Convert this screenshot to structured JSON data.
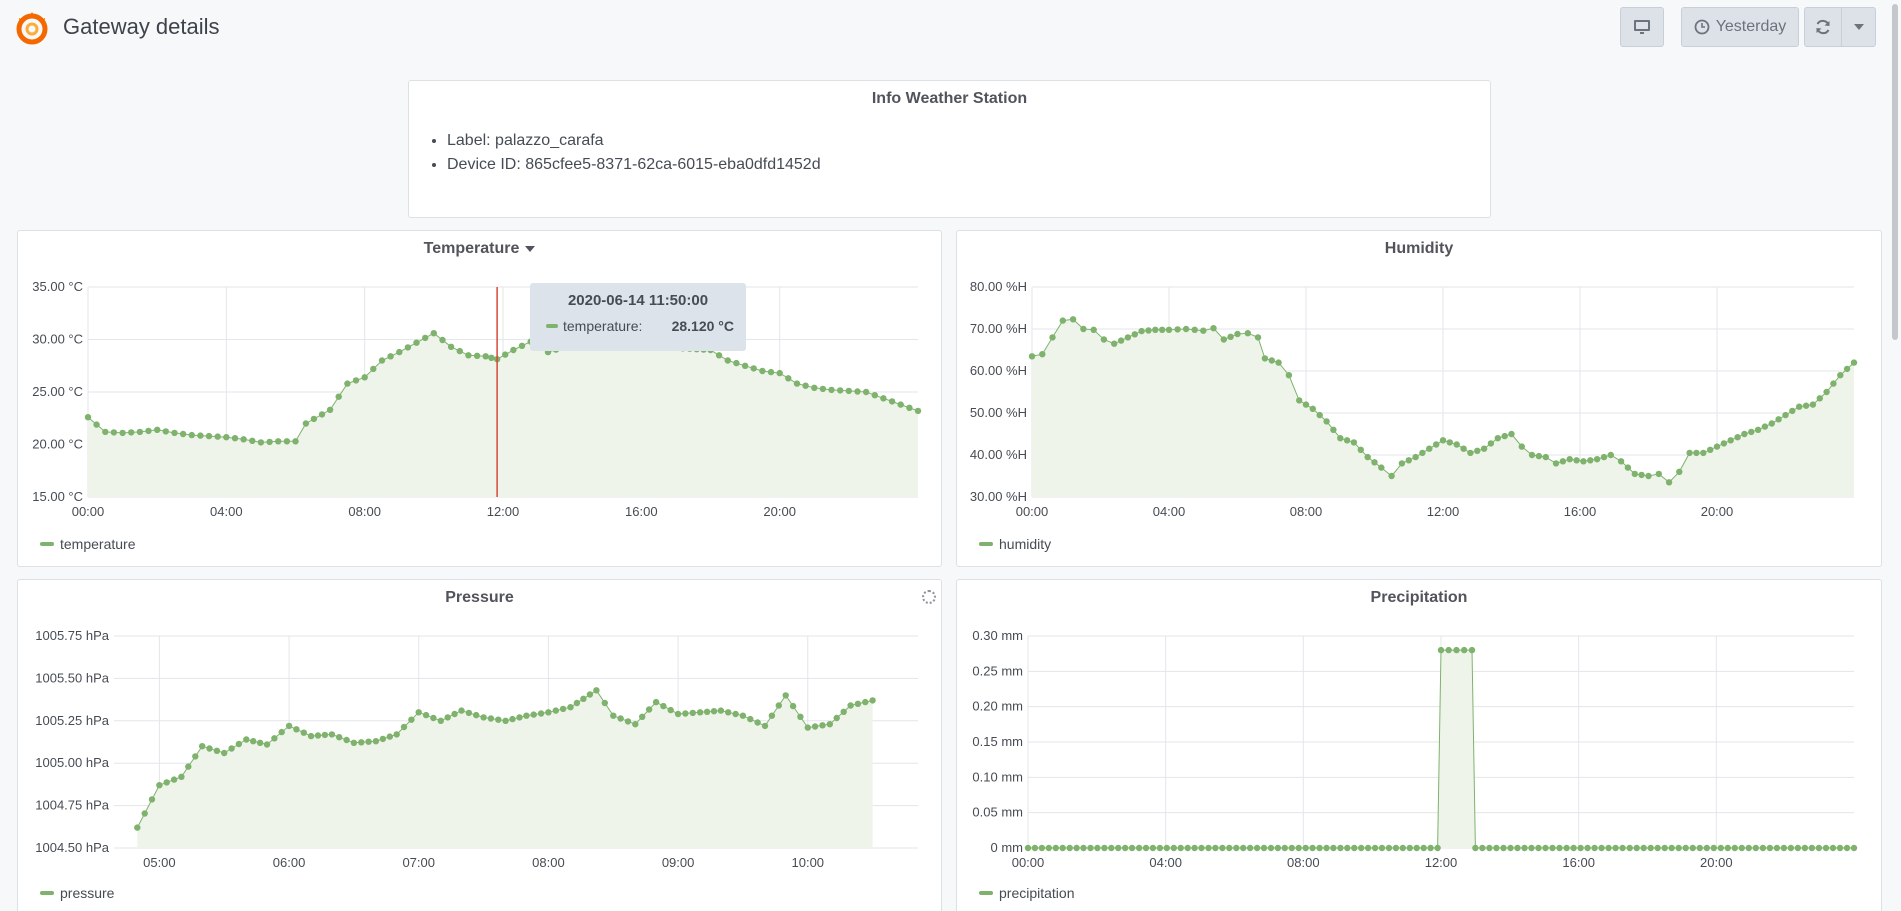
{
  "header": {
    "title": "Gateway details",
    "time_range_label": "Yesterday",
    "icons": [
      "grafana-logo-icon",
      "tv-mode-icon",
      "clock-icon",
      "refresh-icon",
      "caret-down-icon"
    ]
  },
  "info_panel": {
    "title": "Info Weather Station",
    "items": [
      "Label: palazzo_carafa",
      "Device ID: 865cfee5-8371-62ca-6015-eba0dfd1452d"
    ]
  },
  "tooltip": {
    "time": "2020-06-14 11:50:00",
    "series": "temperature:",
    "value": "28.120 °C"
  },
  "colors": {
    "series": "#7eb26d",
    "fill": "#eef4ea",
    "crosshair": "#d44a3a",
    "grid": "#e3e6ea"
  },
  "chart_data": [
    {
      "type": "line",
      "title": "Temperature",
      "unit": "°C",
      "ylim": [
        15,
        35
      ],
      "yticks": [
        "35.00 °C",
        "30.00 °C",
        "25.00 °C",
        "20.00 °C",
        "15.00 °C"
      ],
      "xticks": [
        "00:00",
        "04:00",
        "08:00",
        "12:00",
        "16:00",
        "20:00"
      ],
      "xlim_hours": [
        0,
        24
      ],
      "legend": "temperature",
      "series": [
        {
          "name": "temperature",
          "points": [
            [
              0,
              22.6
            ],
            [
              0.5,
              21.2
            ],
            [
              1,
              21.1
            ],
            [
              1.5,
              21.2
            ],
            [
              2,
              21.4
            ],
            [
              2.5,
              21.1
            ],
            [
              3,
              20.9
            ],
            [
              3.5,
              20.8
            ],
            [
              4,
              20.7
            ],
            [
              4.5,
              20.5
            ],
            [
              5,
              20.2
            ],
            [
              5.5,
              20.3
            ],
            [
              6,
              20.3
            ],
            [
              6.3,
              22
            ],
            [
              7,
              23.3
            ],
            [
              7.5,
              25.8
            ],
            [
              8,
              26.4
            ],
            [
              8.5,
              28
            ],
            [
              9,
              28.8
            ],
            [
              9.5,
              29.7
            ],
            [
              10,
              30.6
            ],
            [
              10.5,
              29.3
            ],
            [
              11,
              28.5
            ],
            [
              11.5,
              28.4
            ],
            [
              11.83,
              28.12
            ],
            [
              12.3,
              29
            ],
            [
              12.8,
              29.8
            ],
            [
              13.3,
              28.8
            ],
            [
              14,
              29.5
            ],
            [
              15,
              29.8
            ],
            [
              16,
              29.6
            ],
            [
              17,
              29.2
            ],
            [
              18,
              29
            ],
            [
              18.5,
              28
            ],
            [
              19,
              27.5
            ],
            [
              19.5,
              27
            ],
            [
              20,
              26.8
            ],
            [
              20.5,
              25.8
            ],
            [
              21,
              25.4
            ],
            [
              21.5,
              25.2
            ],
            [
              22,
              25.1
            ],
            [
              22.5,
              25
            ],
            [
              23,
              24.4
            ],
            [
              23.5,
              23.8
            ],
            [
              24,
              23.2
            ]
          ]
        }
      ]
    },
    {
      "type": "line",
      "title": "Humidity",
      "unit": "%H",
      "ylim": [
        30,
        80
      ],
      "yticks": [
        "80.00 %H",
        "70.00 %H",
        "60.00 %H",
        "50.00 %H",
        "40.00 %H",
        "30.00 %H"
      ],
      "xticks": [
        "00:00",
        "04:00",
        "08:00",
        "12:00",
        "16:00",
        "20:00"
      ],
      "xlim_hours": [
        0,
        24
      ],
      "legend": "humidity",
      "series": [
        {
          "name": "humidity",
          "points": [
            [
              0,
              63.5
            ],
            [
              0.3,
              64
            ],
            [
              0.6,
              68
            ],
            [
              0.9,
              72
            ],
            [
              1.2,
              72.3
            ],
            [
              1.5,
              70
            ],
            [
              1.8,
              69.8
            ],
            [
              2.1,
              67.5
            ],
            [
              2.4,
              66.5
            ],
            [
              2.8,
              68
            ],
            [
              3.2,
              69.5
            ],
            [
              3.6,
              69.8
            ],
            [
              4,
              69.8
            ],
            [
              4.5,
              70
            ],
            [
              5,
              69.6
            ],
            [
              5.3,
              70.2
            ],
            [
              5.6,
              67.5
            ],
            [
              6,
              68.8
            ],
            [
              6.3,
              69
            ],
            [
              6.6,
              68
            ],
            [
              6.8,
              63
            ],
            [
              7.2,
              62
            ],
            [
              7.5,
              59
            ],
            [
              7.8,
              53
            ],
            [
              8.2,
              51
            ],
            [
              8.6,
              48
            ],
            [
              9,
              44
            ],
            [
              9.4,
              43
            ],
            [
              9.8,
              39.5
            ],
            [
              10.2,
              37
            ],
            [
              10.5,
              35
            ],
            [
              10.8,
              38
            ],
            [
              11.2,
              39.5
            ],
            [
              11.6,
              41.5
            ],
            [
              12,
              43.5
            ],
            [
              12.4,
              42.5
            ],
            [
              12.8,
              40.5
            ],
            [
              13.2,
              41.5
            ],
            [
              13.6,
              44
            ],
            [
              14,
              45
            ],
            [
              14.3,
              42
            ],
            [
              14.6,
              40
            ],
            [
              15,
              39.5
            ],
            [
              15.3,
              38
            ],
            [
              15.7,
              39
            ],
            [
              16.1,
              38.5
            ],
            [
              16.5,
              39
            ],
            [
              16.9,
              40
            ],
            [
              17.2,
              38.5
            ],
            [
              17.6,
              35.5
            ],
            [
              18,
              35
            ],
            [
              18.3,
              35.5
            ],
            [
              18.6,
              33.5
            ],
            [
              18.9,
              36
            ],
            [
              19.2,
              40.5
            ],
            [
              19.6,
              40.5
            ],
            [
              20,
              42
            ],
            [
              20.4,
              43.5
            ],
            [
              20.8,
              45
            ],
            [
              21.2,
              46
            ],
            [
              21.6,
              47.5
            ],
            [
              22,
              49.5
            ],
            [
              22.4,
              51.5
            ],
            [
              22.8,
              52
            ],
            [
              23.2,
              55
            ],
            [
              23.6,
              59
            ],
            [
              24,
              62
            ]
          ]
        }
      ]
    },
    {
      "type": "line",
      "title": "Pressure",
      "unit": "hPa",
      "ylim": [
        1004.5,
        1005.75
      ],
      "yticks": [
        "1005.75 hPa",
        "1005.50 hPa",
        "1005.25 hPa",
        "1005.00 hPa",
        "1004.75 hPa",
        "1004.50 hPa"
      ],
      "xticks": [
        "05:00",
        "06:00",
        "07:00",
        "08:00",
        "09:00",
        "10:00"
      ],
      "xlim_hours": [
        4.65,
        10.85
      ],
      "legend": "pressure",
      "series": [
        {
          "name": "pressure",
          "points": [
            [
              4.83,
              1004.62
            ],
            [
              5,
              1004.87
            ],
            [
              5.17,
              1004.92
            ],
            [
              5.33,
              1005.1
            ],
            [
              5.5,
              1005.06
            ],
            [
              5.67,
              1005.14
            ],
            [
              5.83,
              1005.11
            ],
            [
              6,
              1005.22
            ],
            [
              6.17,
              1005.16
            ],
            [
              6.33,
              1005.17
            ],
            [
              6.5,
              1005.12
            ],
            [
              6.67,
              1005.13
            ],
            [
              6.83,
              1005.17
            ],
            [
              7,
              1005.3
            ],
            [
              7.17,
              1005.25
            ],
            [
              7.33,
              1005.31
            ],
            [
              7.5,
              1005.27
            ],
            [
              7.67,
              1005.25
            ],
            [
              7.83,
              1005.28
            ],
            [
              8,
              1005.3
            ],
            [
              8.17,
              1005.33
            ],
            [
              8.37,
              1005.43
            ],
            [
              8.5,
              1005.28
            ],
            [
              8.67,
              1005.23
            ],
            [
              8.83,
              1005.36
            ],
            [
              9,
              1005.29
            ],
            [
              9.17,
              1005.3
            ],
            [
              9.33,
              1005.31
            ],
            [
              9.5,
              1005.28
            ],
            [
              9.67,
              1005.22
            ],
            [
              9.83,
              1005.4
            ],
            [
              10,
              1005.21
            ],
            [
              10.17,
              1005.23
            ],
            [
              10.33,
              1005.34
            ],
            [
              10.5,
              1005.37
            ]
          ]
        }
      ]
    },
    {
      "type": "line",
      "title": "Precipitation",
      "unit": "mm",
      "ylim": [
        0,
        0.3
      ],
      "yticks": [
        "0.30 mm",
        "0.25 mm",
        "0.20 mm",
        "0.15 mm",
        "0.10 mm",
        "0.05 mm",
        "0 mm"
      ],
      "xticks": [
        "00:00",
        "04:00",
        "08:00",
        "12:00",
        "16:00",
        "20:00"
      ],
      "xlim_hours": [
        0,
        24
      ],
      "legend": "precipitation",
      "series": [
        {
          "name": "precipitation",
          "points": [
            [
              0,
              0
            ],
            [
              11.9,
              0
            ],
            [
              12,
              0.28
            ],
            [
              12.9,
              0.28
            ],
            [
              13,
              0
            ],
            [
              24,
              0
            ]
          ]
        }
      ]
    }
  ]
}
